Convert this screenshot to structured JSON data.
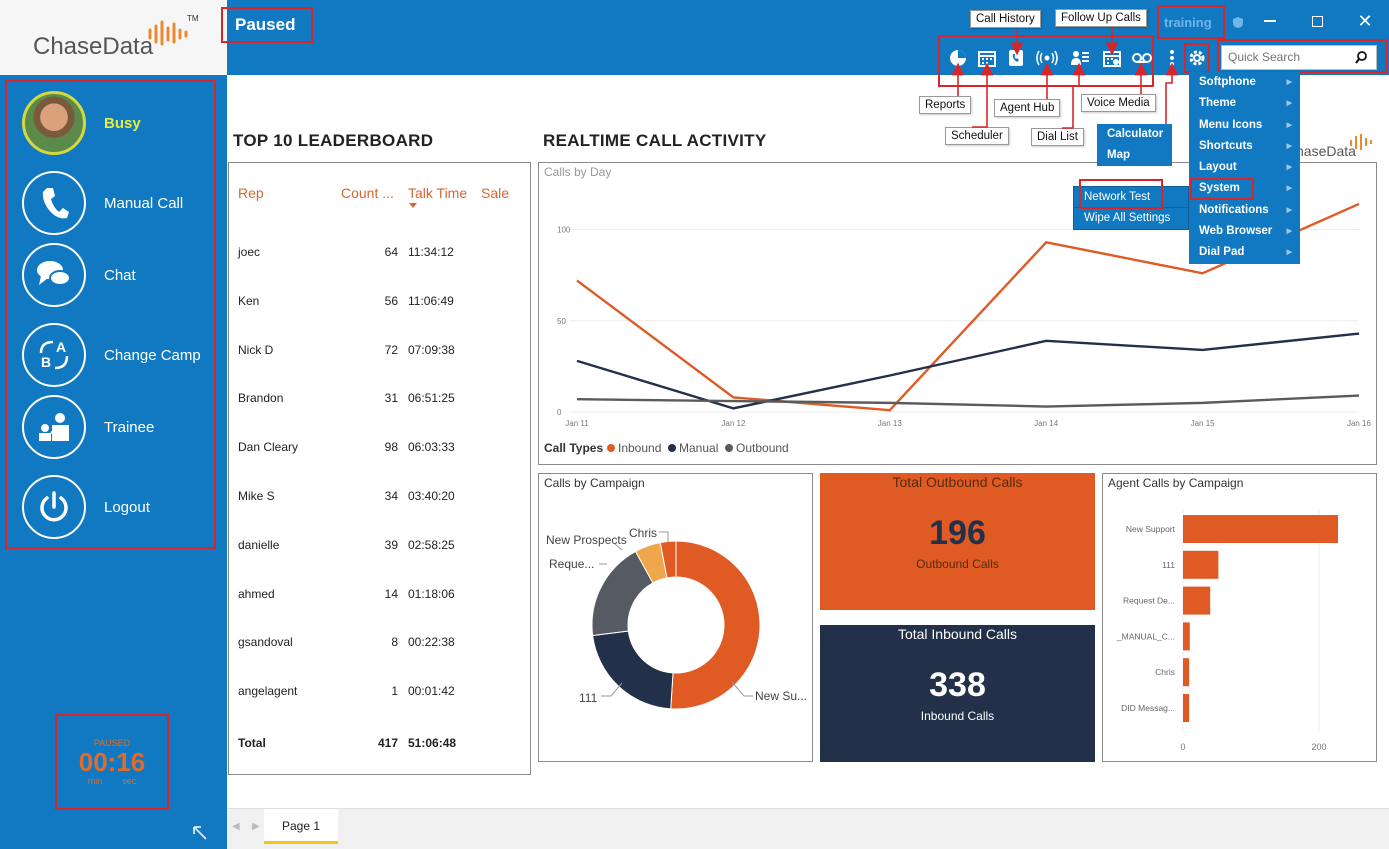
{
  "app": {
    "logo_text": "ChaseData",
    "logo_tm": "TM",
    "status_title": "Paused",
    "profile": "training",
    "search_placeholder": "Quick Search"
  },
  "toolbar_callouts": {
    "call_history": "Call History",
    "follow_up_calls": "Follow Up Calls",
    "reports": "Reports",
    "agent_hub": "Agent Hub",
    "scheduler": "Scheduler",
    "dial_list": "Dial List",
    "voice_media": "Voice Media"
  },
  "sidebar": {
    "items": [
      {
        "label": "Busy",
        "icon": "agent-avatar"
      },
      {
        "label": "Manual Call",
        "icon": "phone-icon"
      },
      {
        "label": "Chat",
        "icon": "chat-icon"
      },
      {
        "label": "Change Camp",
        "icon": "change-campaign-icon"
      },
      {
        "label": "Trainee",
        "icon": "trainee-icon"
      },
      {
        "label": "Logout",
        "icon": "power-icon"
      }
    ],
    "timer": {
      "state": "PAUSED",
      "value": "00:16",
      "min_label": "min",
      "sec_label": "sec"
    }
  },
  "settings_menu": {
    "items": [
      "Softphone",
      "Theme",
      "Menu Icons",
      "Shortcuts",
      "Layout",
      "System",
      "Notifications",
      "Web Browser",
      "Dial Pad"
    ]
  },
  "more_menu": {
    "items": [
      "Calculator",
      "Map"
    ]
  },
  "system_submenu": {
    "items": [
      "Network Test",
      "Wipe All Settings"
    ]
  },
  "leaderboard": {
    "title": "TOP 10 LEADERBOARD",
    "headers": {
      "rep": "Rep",
      "count": "Count ...",
      "talk_time": "Talk Time",
      "sale": "Sale"
    },
    "rows": [
      {
        "rep": "joec",
        "count": "64",
        "talk": "11:34:12"
      },
      {
        "rep": "Ken",
        "count": "56",
        "talk": "11:06:49"
      },
      {
        "rep": "Nick D",
        "count": "72",
        "talk": "07:09:38"
      },
      {
        "rep": "Brandon",
        "count": "31",
        "talk": "06:51:25"
      },
      {
        "rep": "Dan Cleary",
        "count": "98",
        "talk": "06:03:33"
      },
      {
        "rep": "Mike S",
        "count": "34",
        "talk": "03:40:20"
      },
      {
        "rep": "danielle",
        "count": "39",
        "talk": "02:58:25"
      },
      {
        "rep": "ahmed",
        "count": "14",
        "talk": "01:18:06"
      },
      {
        "rep": "gsandoval",
        "count": "8",
        "talk": "00:22:38"
      },
      {
        "rep": "angelagent",
        "count": "1",
        "talk": "00:01:42"
      }
    ],
    "total": {
      "label": "Total",
      "count": "417",
      "talk": "51:06:48"
    }
  },
  "realtime": {
    "title": "REALTIME CALL ACTIVITY",
    "brand_fragment": "haseData"
  },
  "colors": {
    "accent": "#1179c2",
    "inbound": "#e05a24",
    "manual": "#22304a",
    "outbound": "#5b5b5b",
    "highlight": "#d6262c",
    "chris": "#f0a64a"
  },
  "chart_data": [
    {
      "type": "line",
      "title": "Calls by Day",
      "x": [
        "Jan 11",
        "Jan 12",
        "Jan 13",
        "Jan 14",
        "Jan 15",
        "Jan 16"
      ],
      "ylim": [
        0,
        120
      ],
      "yticks": [
        "0",
        "50",
        "100"
      ],
      "legend_title": "Call Types",
      "legend_position": "bottom-left",
      "series": [
        {
          "name": "Inbound",
          "values": [
            72,
            8,
            1,
            93,
            76,
            114
          ]
        },
        {
          "name": "Manual",
          "values": [
            28,
            2,
            20,
            39,
            34,
            43
          ]
        },
        {
          "name": "Outbound",
          "values": [
            7,
            6,
            5,
            3,
            5,
            9
          ]
        }
      ]
    },
    {
      "type": "pie",
      "title": "Calls by Campaign",
      "labels": [
        "New Su...",
        "111",
        "Reque...",
        "New Prospects",
        "Chris"
      ],
      "values": [
        51,
        22,
        19,
        5,
        3
      ]
    },
    {
      "type": "table",
      "title": "Total Outbound Calls",
      "values": [
        196
      ],
      "caption": "Outbound Calls"
    },
    {
      "type": "table",
      "title": "Total Inbound Calls",
      "values": [
        338
      ],
      "caption": "Inbound Calls"
    },
    {
      "type": "bar",
      "title": "Agent Calls by Campaign",
      "categories": [
        "New Support",
        "111",
        "Request De...",
        "_MANUAL_C...",
        "Chris",
        "DID Messag..."
      ],
      "values": [
        228,
        52,
        40,
        10,
        9,
        9
      ],
      "xticks": [
        "0",
        "200"
      ]
    }
  ],
  "footer": {
    "tab": "Page 1"
  }
}
